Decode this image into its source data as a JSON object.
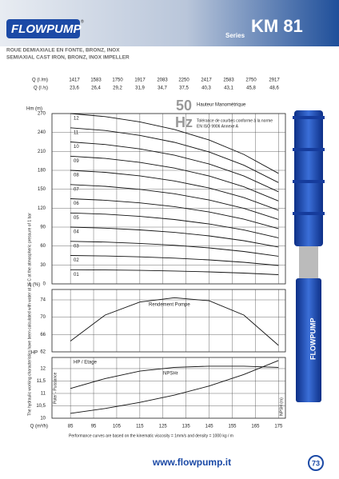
{
  "header": {
    "logo": "FLOWPUMP",
    "logo_mark": "®",
    "series_label": "Series",
    "model": "KM 81"
  },
  "subtitle": [
    "ROUE DEMIAXIALE EN FONTE, BRONZ, INOX",
    "SEMIAXIAL CAST IRON, BRONZ, INOX IMPELLER"
  ],
  "flow_table": {
    "rows": [
      {
        "label": "Q (l /m)",
        "values": [
          1417,
          1583,
          1750,
          1917,
          2083,
          2250,
          2417,
          2583,
          2750,
          2917
        ]
      },
      {
        "label": "Q (l /s)",
        "values": [
          "23,6",
          "26,4",
          "29,2",
          "31,9",
          "34,7",
          "37,5",
          "40,3",
          "43,1",
          "45,8",
          "48,6"
        ]
      }
    ]
  },
  "side_note": "The hydraulic working characteristics have been calculated with water at 15 C at the atmospheric pressure of 1 bar",
  "footnote": "Performance curves are based on the kinematic viscosity  = 1mm/s and density  = 1000 kg / m",
  "pump_label": "FLOWPUMP",
  "footer": {
    "url": "www.flowpump.it",
    "page": "73"
  },
  "chart_data": [
    {
      "type": "line",
      "y_label": "Hm (m)",
      "frequency": "50",
      "frequency_unit": "Hz",
      "annotations": [
        "Hauteur Manométrique",
        "Tolérance de courbes conforme à la norme",
        "EN ISO 9906 Annexe A"
      ],
      "xlim": [
        77,
        178
      ],
      "ylim": [
        0,
        270
      ],
      "yticks": [
        0,
        30,
        60,
        90,
        120,
        150,
        180,
        210,
        240,
        270
      ],
      "grid": true,
      "x": [
        85,
        100,
        115,
        130,
        145,
        160,
        175
      ],
      "series": [
        {
          "name": "01",
          "color": "#111111",
          "values": [
            22.5,
            22.1,
            21.4,
            20.4,
            19,
            17.1,
            14.6
          ]
        },
        {
          "name": "02",
          "color": "#111111",
          "values": [
            45,
            44.2,
            42.8,
            40.8,
            38,
            34.2,
            29.2
          ]
        },
        {
          "name": "03",
          "color": "#111111",
          "values": [
            67.5,
            66.3,
            64.2,
            61.2,
            57,
            51.3,
            43.8
          ]
        },
        {
          "name": "04",
          "color": "#111111",
          "values": [
            90,
            88.4,
            85.6,
            81.6,
            76,
            68.4,
            58.4
          ]
        },
        {
          "name": "05",
          "color": "#111111",
          "values": [
            112.5,
            110.5,
            107,
            102,
            95,
            85.5,
            73
          ]
        },
        {
          "name": "06",
          "color": "#111111",
          "values": [
            135,
            132.6,
            128.4,
            122.4,
            114,
            102.6,
            87.6
          ]
        },
        {
          "name": "07",
          "color": "#111111",
          "values": [
            157.5,
            154.7,
            149.8,
            142.8,
            133,
            119.7,
            102.2
          ]
        },
        {
          "name": "08",
          "color": "#111111",
          "values": [
            180,
            176.8,
            171.2,
            163.2,
            152,
            136.8,
            116.8
          ]
        },
        {
          "name": "09",
          "color": "#111111",
          "values": [
            202.5,
            198.9,
            192.6,
            183.6,
            171,
            153.9,
            131.4
          ]
        },
        {
          "name": "10",
          "color": "#111111",
          "values": [
            225,
            221,
            214,
            204,
            190,
            171,
            146
          ]
        },
        {
          "name": "11",
          "color": "#111111",
          "values": [
            247.5,
            243.1,
            235.4,
            224.4,
            209,
            188.1,
            160.6
          ]
        },
        {
          "name": "12",
          "color": "#111111",
          "values": [
            270,
            265.2,
            256.8,
            244.8,
            228,
            205.2,
            175.2
          ]
        }
      ]
    },
    {
      "type": "line",
      "y_label": "η (%)",
      "xlim": [
        77,
        178
      ],
      "ylim": [
        62,
        76.4
      ],
      "yticks": [
        62,
        66,
        70,
        74
      ],
      "grid": true,
      "x": [
        85,
        100,
        115,
        130,
        145,
        160,
        175
      ],
      "series": [
        {
          "name": "Rendement Pompe",
          "color": "#111111",
          "values": [
            64.5,
            70.5,
            73.5,
            74.5,
            73.8,
            70.5,
            63.5
          ]
        }
      ]
    },
    {
      "type": "line",
      "y_label": "HP",
      "x_label": "Q (m³/h)",
      "y_axis_title": "Poter - Puissance",
      "y2_label": "NPSH (m)",
      "xlim": [
        77,
        178
      ],
      "xticks": [
        85,
        95,
        105,
        115,
        125,
        135,
        145,
        155,
        165,
        175
      ],
      "ylim": [
        10,
        12.45
      ],
      "yticks": [
        10,
        {
          "value": 10.5,
          "label": "10,5"
        },
        11,
        {
          "value": 11.5,
          "label": "11,5"
        },
        12
      ],
      "y2lim": [
        0,
        10
      ],
      "grid": true,
      "x": [
        85,
        100,
        115,
        130,
        145,
        160,
        175
      ],
      "series": [
        {
          "name": "HP / Etage",
          "color": "#111111",
          "values": [
            11.2,
            11.6,
            11.9,
            12.05,
            12.1,
            12.1,
            12.05
          ]
        },
        {
          "name": "NPSHr",
          "color": "#111111",
          "axis": "y2",
          "values": [
            0.8,
            1.6,
            2.6,
            3.8,
            5.3,
            7.2,
            9.5
          ]
        }
      ]
    }
  ]
}
